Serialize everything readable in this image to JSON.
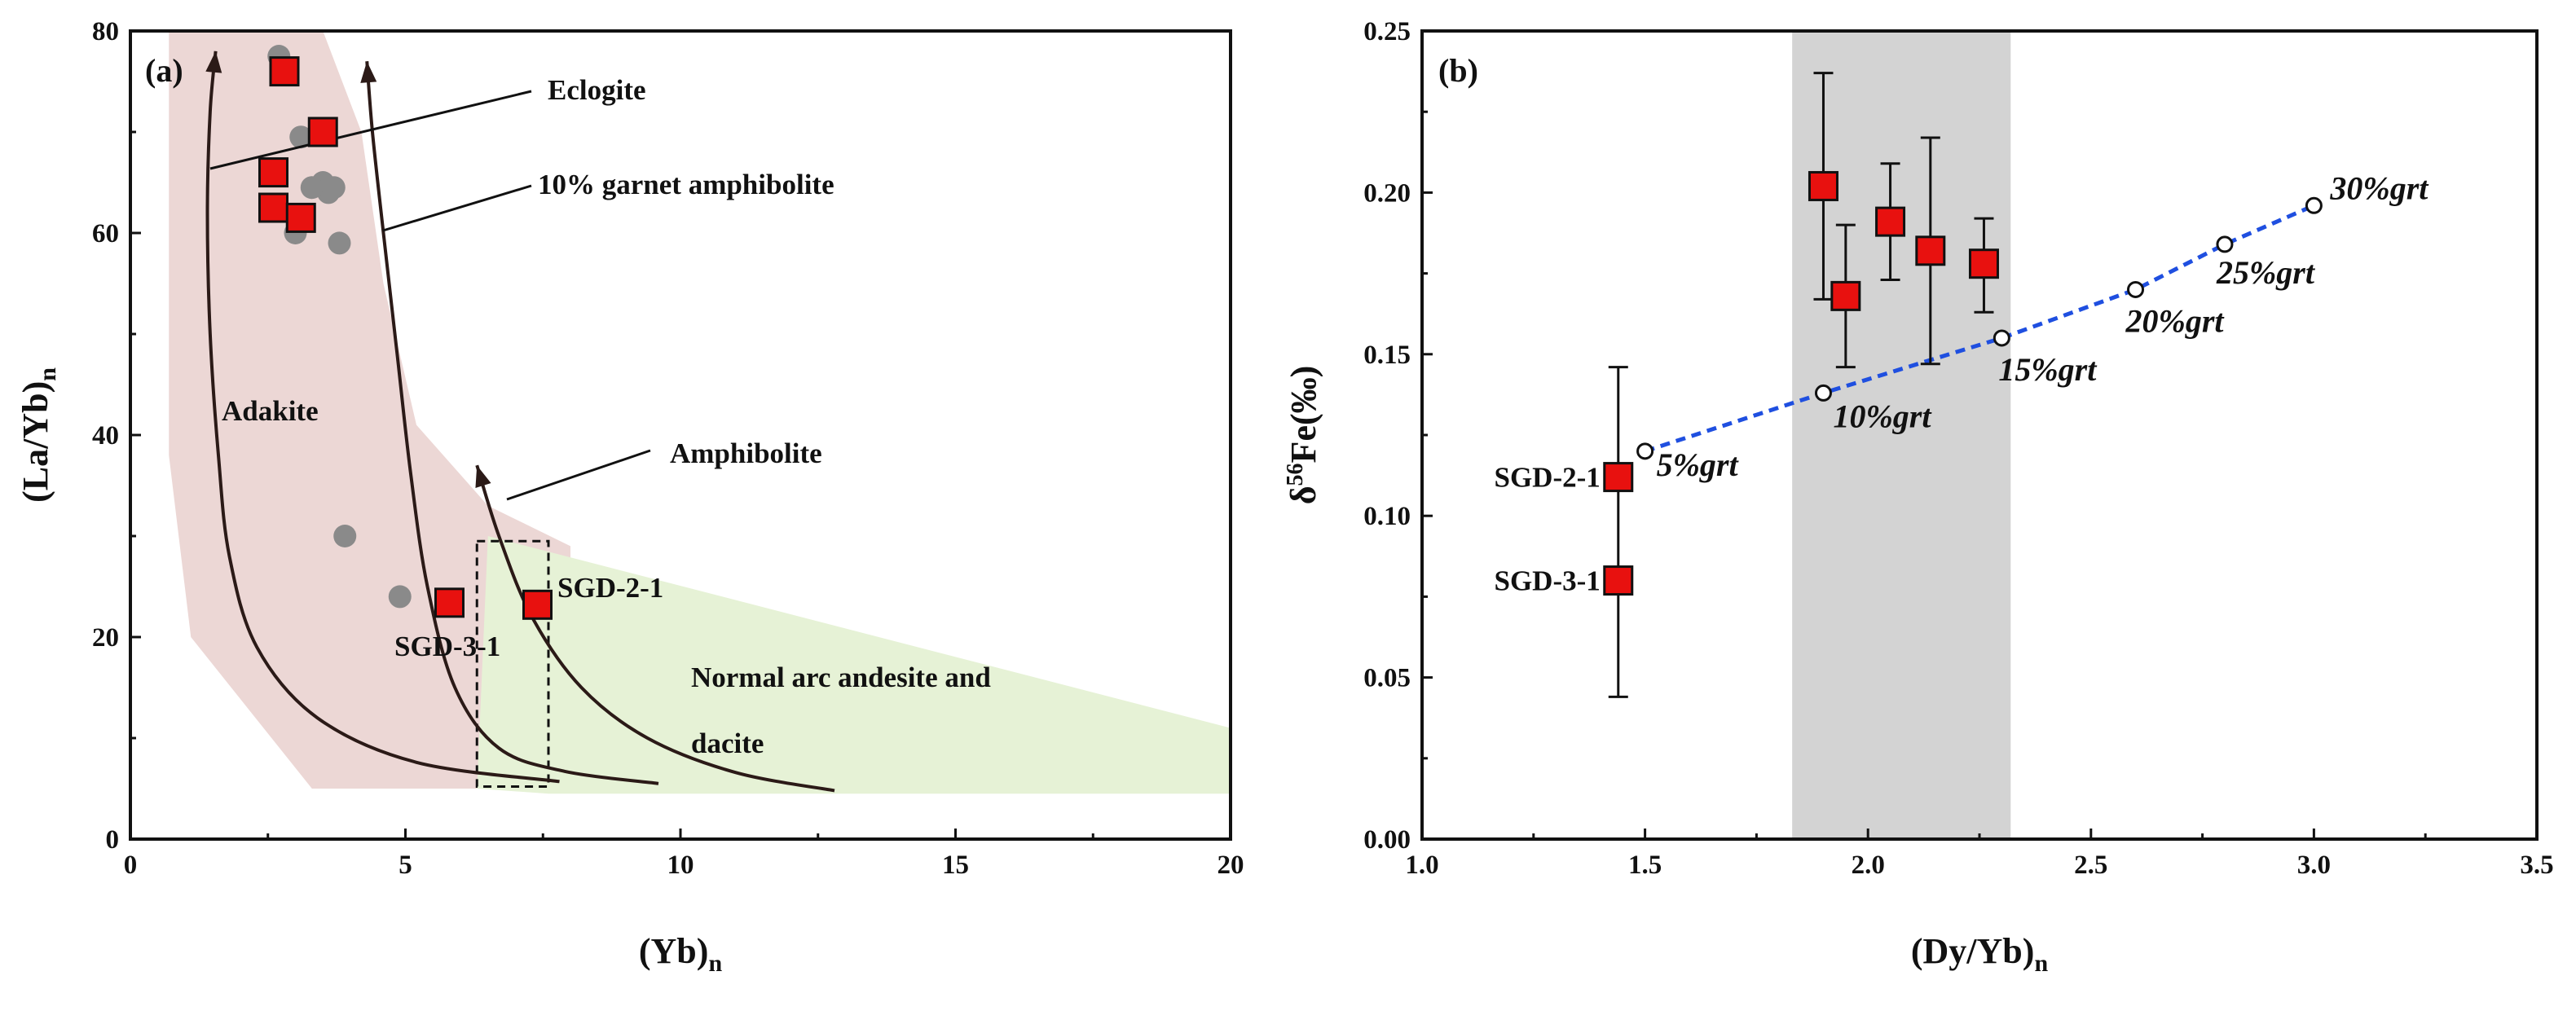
{
  "chart_data": [
    {
      "type": "scatter",
      "panel_label": "(a)",
      "xlabel_main": "(Yb)",
      "xlabel_sub": "n",
      "ylabel_main": "(La/Yb)",
      "ylabel_sub": "n",
      "xlim": [
        0,
        20
      ],
      "ylim": [
        0,
        80
      ],
      "xticks": [
        0,
        5,
        10,
        15,
        20
      ],
      "yticks": [
        0,
        20,
        40,
        60,
        80
      ],
      "regions": [
        {
          "name": "Adakite",
          "color": "#ecd7d5",
          "polygon": [
            [
              0.7,
              80
            ],
            [
              3.5,
              80
            ],
            [
              4.2,
              70
            ],
            [
              4.6,
              55
            ],
            [
              5.2,
              41
            ],
            [
              6.5,
              33
            ],
            [
              8,
              29
            ],
            [
              8,
              5
            ],
            [
              3.3,
              5
            ],
            [
              1.1,
              20
            ],
            [
              0.7,
              38
            ]
          ]
        },
        {
          "name": "Normal arc andesite and dacite",
          "color": "#e6f2d6",
          "polygon": [
            [
              6.5,
              30
            ],
            [
              20,
              11
            ],
            [
              20,
              4.5
            ],
            [
              7.6,
              4.5
            ],
            [
              6.3,
              5
            ]
          ]
        }
      ],
      "gray_points": [
        [
          2.7,
          77.5
        ],
        [
          3.1,
          69.5
        ],
        [
          3.5,
          65
        ],
        [
          3.7,
          64.5
        ],
        [
          3.6,
          64
        ],
        [
          3.3,
          64.5
        ],
        [
          3.0,
          60
        ],
        [
          3.8,
          59
        ],
        [
          3.9,
          30
        ],
        [
          4.9,
          24
        ]
      ],
      "red_points": [
        [
          2.8,
          76
        ],
        [
          3.5,
          70
        ],
        [
          2.6,
          66
        ],
        [
          2.6,
          62.5
        ],
        [
          3.1,
          61.5
        ],
        [
          5.8,
          23.4
        ],
        [
          7.4,
          23.2
        ]
      ],
      "trend_curves": [
        {
          "name": "Eclogite",
          "points": [
            [
              1.55,
              78
            ],
            [
              1.45,
              72
            ],
            [
              1.4,
              62
            ],
            [
              1.45,
              50
            ],
            [
              1.6,
              38
            ],
            [
              1.8,
              28
            ],
            [
              2.3,
              19
            ],
            [
              3.4,
              12
            ],
            [
              5.2,
              7.6
            ],
            [
              7.8,
              5.7
            ]
          ]
        },
        {
          "name": "10% garnet amphibolite",
          "points": [
            [
              4.3,
              77
            ],
            [
              4.4,
              70
            ],
            [
              4.6,
              60
            ],
            [
              4.85,
              48
            ],
            [
              5.1,
              36
            ],
            [
              5.4,
              25
            ],
            [
              5.9,
              15
            ],
            [
              6.7,
              9
            ],
            [
              7.9,
              6.7
            ],
            [
              9.6,
              5.5
            ]
          ]
        },
        {
          "name": "Amphibolite",
          "points": [
            [
              6.3,
              37
            ],
            [
              6.7,
              30
            ],
            [
              7.3,
              22
            ],
            [
              8.2,
              15
            ],
            [
              9.4,
              10
            ],
            [
              11,
              6.6
            ],
            [
              12.8,
              4.8
            ]
          ]
        }
      ],
      "dashed_box": {
        "x": [
          6.3,
          7.6
        ],
        "y": [
          5.2,
          29.5
        ]
      },
      "annotations": [
        {
          "text": "Eclogite"
        },
        {
          "text": "10% garnet amphibolite"
        },
        {
          "text": "Adakite"
        },
        {
          "text": "Amphibolite"
        },
        {
          "text": "SGD-2-1"
        },
        {
          "text": "SGD-3-1"
        },
        {
          "text": "Normal arc andesite and"
        },
        {
          "text": "dacite"
        }
      ]
    },
    {
      "type": "scatter",
      "panel_label": "(b)",
      "xlabel_main": "(Dy/Yb)",
      "xlabel_sub": "n",
      "ylabel_pre": "δ",
      "ylabel_sup": "56",
      "ylabel_post": "Fe(‰)",
      "xlim": [
        1.0,
        3.5
      ],
      "ylim": [
        0.0,
        0.25
      ],
      "xticks": [
        "1.0",
        "1.5",
        "2.0",
        "2.5",
        "3.0",
        "3.5"
      ],
      "yticks": [
        "0.00",
        "0.05",
        "0.10",
        "0.15",
        "0.20",
        "0.25"
      ],
      "shaded_band": {
        "x": [
          1.83,
          2.32
        ],
        "color": "#d3d3d3"
      },
      "samples": [
        {
          "x": 1.44,
          "y": 0.112,
          "err_low": 0.078,
          "err_high": 0.146,
          "label": "SGD-2-1"
        },
        {
          "x": 1.44,
          "y": 0.08,
          "err_low": 0.044,
          "err_high": 0.08,
          "label": "SGD-3-1"
        },
        {
          "x": 1.9,
          "y": 0.202,
          "err_low": 0.167,
          "err_high": 0.237
        },
        {
          "x": 1.95,
          "y": 0.168,
          "err_low": 0.146,
          "err_high": 0.19
        },
        {
          "x": 2.05,
          "y": 0.191,
          "err_low": 0.173,
          "err_high": 0.209
        },
        {
          "x": 2.14,
          "y": 0.182,
          "err_low": 0.147,
          "err_high": 0.217
        },
        {
          "x": 2.26,
          "y": 0.178,
          "err_low": 0.163,
          "err_high": 0.192
        }
      ],
      "model_line": {
        "style": "dashed",
        "color": "#1f4fe0",
        "points": [
          {
            "x": 1.5,
            "y": 0.12,
            "label": "5%grt"
          },
          {
            "x": 1.9,
            "y": 0.138,
            "label": "10%grt"
          },
          {
            "x": 2.3,
            "y": 0.155,
            "label": "15%grt"
          },
          {
            "x": 2.6,
            "y": 0.17,
            "label": "20%grt"
          },
          {
            "x": 2.8,
            "y": 0.184,
            "label": "25%grt"
          },
          {
            "x": 3.0,
            "y": 0.196,
            "label": "30%grt"
          }
        ]
      }
    }
  ]
}
